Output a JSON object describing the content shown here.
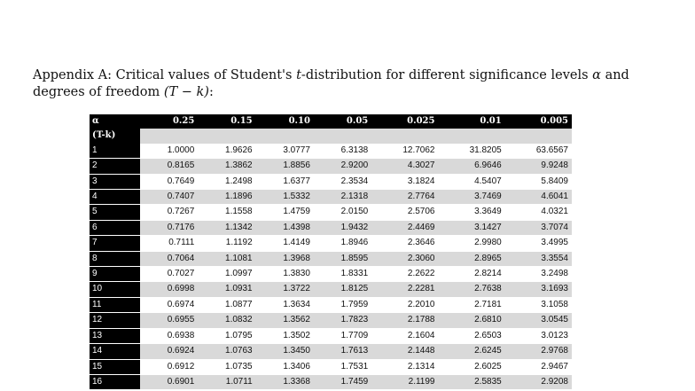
{
  "caption": {
    "prefix": "Appendix A: Critical values of Student's ",
    "t_symbol": "t",
    "middle": "-distribution for different significance levels ",
    "alpha_symbol": "α",
    "suffix": " and degrees of freedom ",
    "dof": "(T − k)",
    "end": ":"
  },
  "table": {
    "header_label": "α",
    "subheader_label": "(T-k)",
    "columns": [
      "0.25",
      "0.15",
      "0.10",
      "0.05",
      "0.025",
      "0.01",
      "0.005"
    ],
    "rows": [
      {
        "df": "1",
        "values": [
          "1.0000",
          "1.9626",
          "3.0777",
          "6.3138",
          "12.7062",
          "31.8205",
          "63.6567"
        ]
      },
      {
        "df": "2",
        "values": [
          "0.8165",
          "1.3862",
          "1.8856",
          "2.9200",
          "4.3027",
          "6.9646",
          "9.9248"
        ]
      },
      {
        "df": "3",
        "values": [
          "0.7649",
          "1.2498",
          "1.6377",
          "2.3534",
          "3.1824",
          "4.5407",
          "5.8409"
        ]
      },
      {
        "df": "4",
        "values": [
          "0.7407",
          "1.1896",
          "1.5332",
          "2.1318",
          "2.7764",
          "3.7469",
          "4.6041"
        ]
      },
      {
        "df": "5",
        "values": [
          "0.7267",
          "1.1558",
          "1.4759",
          "2.0150",
          "2.5706",
          "3.3649",
          "4.0321"
        ]
      },
      {
        "df": "6",
        "values": [
          "0.7176",
          "1.1342",
          "1.4398",
          "1.9432",
          "2.4469",
          "3.1427",
          "3.7074"
        ]
      },
      {
        "df": "7",
        "values": [
          "0.7111",
          "1.1192",
          "1.4149",
          "1.8946",
          "2.3646",
          "2.9980",
          "3.4995"
        ]
      },
      {
        "df": "8",
        "values": [
          "0.7064",
          "1.1081",
          "1.3968",
          "1.8595",
          "2.3060",
          "2.8965",
          "3.3554"
        ]
      },
      {
        "df": "9",
        "values": [
          "0.7027",
          "1.0997",
          "1.3830",
          "1.8331",
          "2.2622",
          "2.8214",
          "3.2498"
        ]
      },
      {
        "df": "10",
        "values": [
          "0.6998",
          "1.0931",
          "1.3722",
          "1.8125",
          "2.2281",
          "2.7638",
          "3.1693"
        ]
      },
      {
        "df": "11",
        "values": [
          "0.6974",
          "1.0877",
          "1.3634",
          "1.7959",
          "2.2010",
          "2.7181",
          "3.1058"
        ]
      },
      {
        "df": "12",
        "values": [
          "0.6955",
          "1.0832",
          "1.3562",
          "1.7823",
          "2.1788",
          "2.6810",
          "3.0545"
        ]
      },
      {
        "df": "13",
        "values": [
          "0.6938",
          "1.0795",
          "1.3502",
          "1.7709",
          "2.1604",
          "2.6503",
          "3.0123"
        ]
      },
      {
        "df": "14",
        "values": [
          "0.6924",
          "1.0763",
          "1.3450",
          "1.7613",
          "2.1448",
          "2.6245",
          "2.9768"
        ]
      },
      {
        "df": "15",
        "values": [
          "0.6912",
          "1.0735",
          "1.3406",
          "1.7531",
          "2.1314",
          "2.6025",
          "2.9467"
        ]
      },
      {
        "df": "16",
        "values": [
          "0.6901",
          "1.0711",
          "1.3368",
          "1.7459",
          "2.1199",
          "2.5835",
          "2.9208"
        ]
      }
    ]
  }
}
